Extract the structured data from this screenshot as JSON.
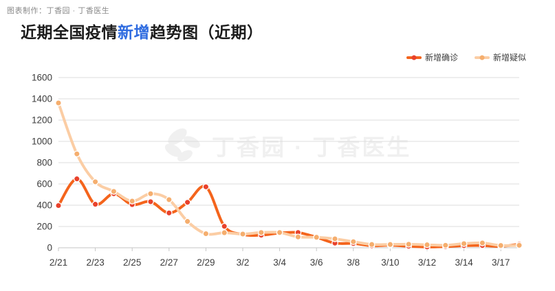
{
  "page": {
    "credit": "图表制作：丁香园 · 丁香医生",
    "title": {
      "prefix": "近期全国疫情",
      "highlight": "新增",
      "suffix": "趋势图（近期）"
    },
    "watermark_text": "丁香园 · 丁香医生"
  },
  "colors": {
    "title_text": "#1c1c1c",
    "title_highlight": "#2e6be0",
    "credit_text": "#8a8a8a",
    "axis_label": "#3c3c3c",
    "gridline": "#dcdcdc",
    "axis_line": "#c6c6c6",
    "watermark": "#f0f0f0",
    "background": "#ffffff"
  },
  "chart_data": {
    "type": "line",
    "title": "近期全国疫情新增趋势图（近期）",
    "xlabel": "",
    "ylabel": "",
    "x": [
      "2/21",
      "2/22",
      "2/23",
      "2/24",
      "2/25",
      "2/26",
      "2/27",
      "2/28",
      "2/29",
      "3/1",
      "3/2",
      "3/3",
      "3/4",
      "3/5",
      "3/6",
      "3/7",
      "3/8",
      "3/9",
      "3/10",
      "3/11",
      "3/12",
      "3/13",
      "3/14",
      "3/16",
      "3/17",
      "3/18"
    ],
    "x_tick_labels": [
      "2/21",
      "2/23",
      "2/25",
      "2/27",
      "2/29",
      "3/2",
      "3/4",
      "3/6",
      "3/8",
      "3/10",
      "3/12",
      "3/14",
      "3/17"
    ],
    "x_label_every": 2,
    "ylim": [
      0,
      1600
    ],
    "ytick_step": 200,
    "yticks": [
      0,
      200,
      400,
      600,
      800,
      1000,
      1200,
      1400,
      1600
    ],
    "grid": true,
    "smooth": true,
    "legend_position": "top-right",
    "series": [
      {
        "name": "新增确诊",
        "line_color": "#f4641c",
        "marker_color": "#e9422c",
        "values": [
          397,
          648,
          409,
          508,
          406,
          433,
          327,
          427,
          573,
          202,
          125,
          119,
          139,
          143,
          99,
          44,
          40,
          19,
          24,
          15,
          8,
          11,
          20,
          21,
          13,
          34
        ]
      },
      {
        "name": "新增疑似",
        "line_color": "#fbcda4",
        "marker_color": "#f5ae6e",
        "values": [
          1361,
          882,
          620,
          530,
          439,
          508,
          452,
          248,
          132,
          141,
          129,
          143,
          143,
          102,
          99,
          84,
          57,
          31,
          31,
          33,
          28,
          23,
          39,
          45,
          21,
          23
        ]
      }
    ]
  }
}
